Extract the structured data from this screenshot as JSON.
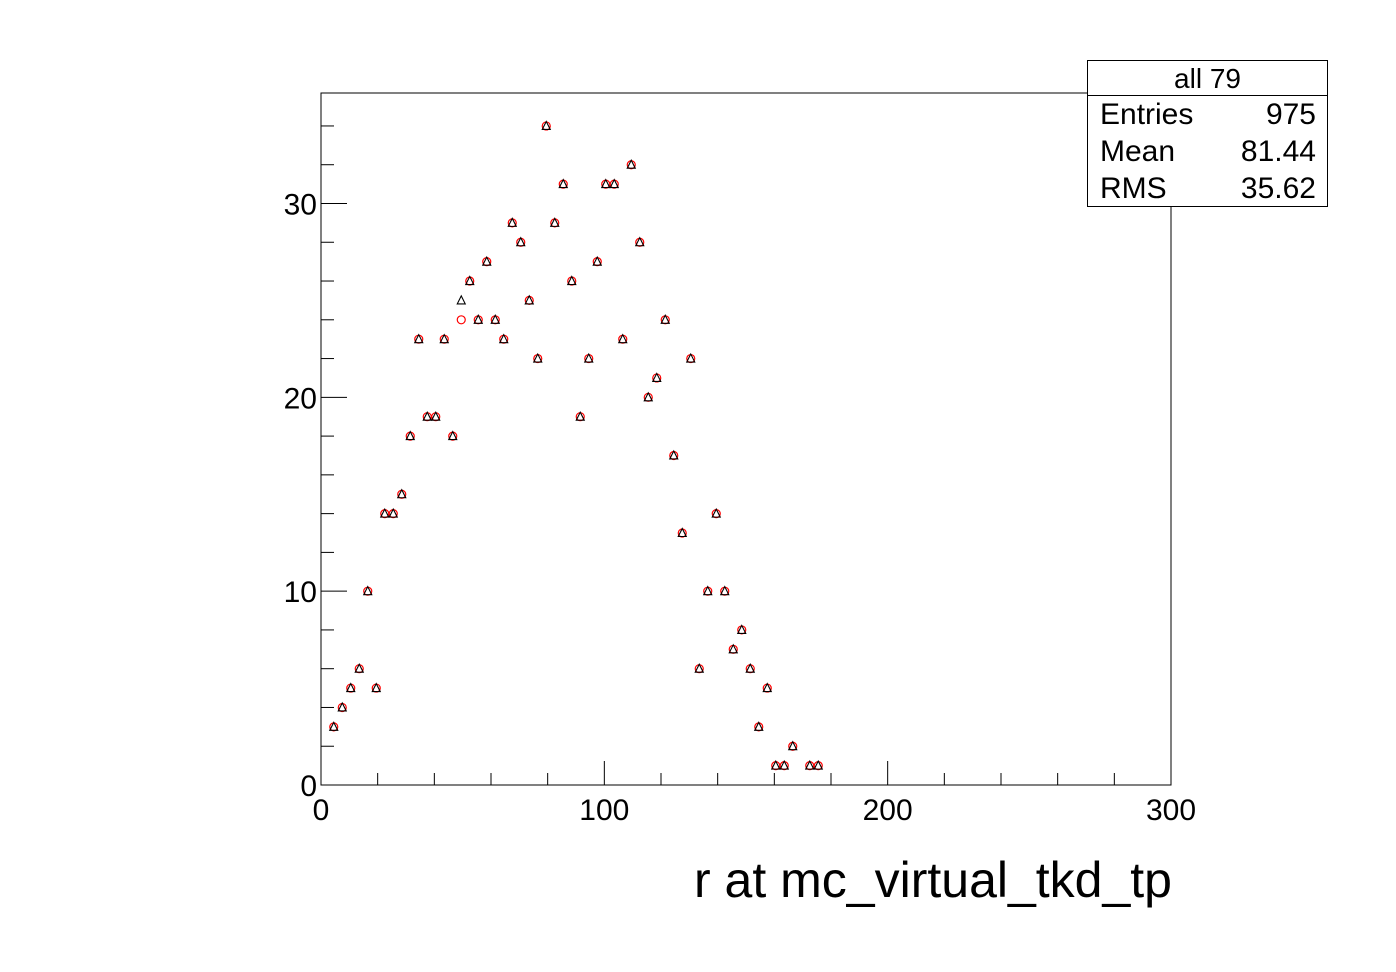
{
  "chart_data": {
    "type": "scatter",
    "title": "",
    "xlabel": "r at mc_virtual_tkd_tp",
    "ylabel": "",
    "xlim": [
      0,
      300
    ],
    "ylim": [
      0,
      35.7
    ],
    "x_ticks": [
      "0",
      "100",
      "200",
      "300"
    ],
    "y_ticks": [
      "0",
      "10",
      "20",
      "30"
    ],
    "grid": false,
    "stats_box": {
      "title": "all 79",
      "rows": [
        {
          "label": "Entries",
          "value": "975"
        },
        {
          "label": "Mean",
          "value": "81.44"
        },
        {
          "label": "RMS",
          "value": "35.62"
        }
      ],
      "placement": "top-right"
    },
    "series": [
      {
        "marker": "open-circle",
        "color": "#ff0000",
        "x": [
          4.5,
          7.5,
          10.5,
          13.5,
          16.5,
          19.5,
          22.5,
          25.5,
          28.5,
          31.5,
          34.5,
          37.5,
          40.5,
          43.5,
          46.5,
          49.5,
          52.5,
          55.5,
          58.5,
          61.5,
          64.5,
          67.5,
          70.5,
          73.5,
          76.5,
          79.5,
          82.5,
          85.5,
          88.5,
          91.5,
          94.5,
          97.5,
          100.5,
          103.5,
          106.5,
          109.5,
          112.5,
          115.5,
          118.5,
          121.5,
          124.5,
          127.5,
          130.5,
          133.5,
          136.5,
          139.5,
          142.5,
          145.5,
          148.5,
          151.5,
          154.5,
          157.5,
          160.5,
          163.5,
          166.5,
          172.5,
          175.5
        ],
        "y": [
          3,
          4,
          5,
          6,
          10,
          5,
          14,
          14,
          15,
          18,
          23,
          19,
          19,
          23,
          18,
          24,
          26,
          24,
          27,
          24,
          23,
          29,
          28,
          25,
          22,
          34,
          29,
          31,
          26,
          19,
          22,
          27,
          31,
          31,
          23,
          32,
          28,
          20,
          21,
          24,
          17,
          13,
          22,
          6,
          10,
          14,
          10,
          7,
          8,
          6,
          3,
          5,
          1,
          1,
          2,
          1,
          1
        ]
      },
      {
        "marker": "open-triangle",
        "color": "#000000",
        "x": [
          4.5,
          7.5,
          10.5,
          13.5,
          16.5,
          19.5,
          22.5,
          25.5,
          28.5,
          31.5,
          34.5,
          37.5,
          40.5,
          43.5,
          46.5,
          49.5,
          52.5,
          55.5,
          58.5,
          61.5,
          64.5,
          67.5,
          70.5,
          73.5,
          76.5,
          79.5,
          82.5,
          85.5,
          88.5,
          91.5,
          94.5,
          97.5,
          100.5,
          103.5,
          106.5,
          109.5,
          112.5,
          115.5,
          118.5,
          121.5,
          124.5,
          127.5,
          130.5,
          133.5,
          136.5,
          139.5,
          142.5,
          145.5,
          148.5,
          151.5,
          154.5,
          157.5,
          160.5,
          163.5,
          166.5,
          172.5,
          175.5
        ],
        "y": [
          3,
          4,
          5,
          6,
          10,
          5,
          14,
          14,
          15,
          18,
          23,
          19,
          19,
          23,
          18,
          25,
          26,
          24,
          27,
          24,
          23,
          29,
          28,
          25,
          22,
          34,
          29,
          31,
          26,
          19,
          22,
          27,
          31,
          31,
          23,
          32,
          28,
          20,
          21,
          24,
          17,
          13,
          22,
          6,
          10,
          14,
          10,
          7,
          8,
          6,
          3,
          5,
          1,
          1,
          2,
          1,
          1
        ]
      }
    ]
  }
}
